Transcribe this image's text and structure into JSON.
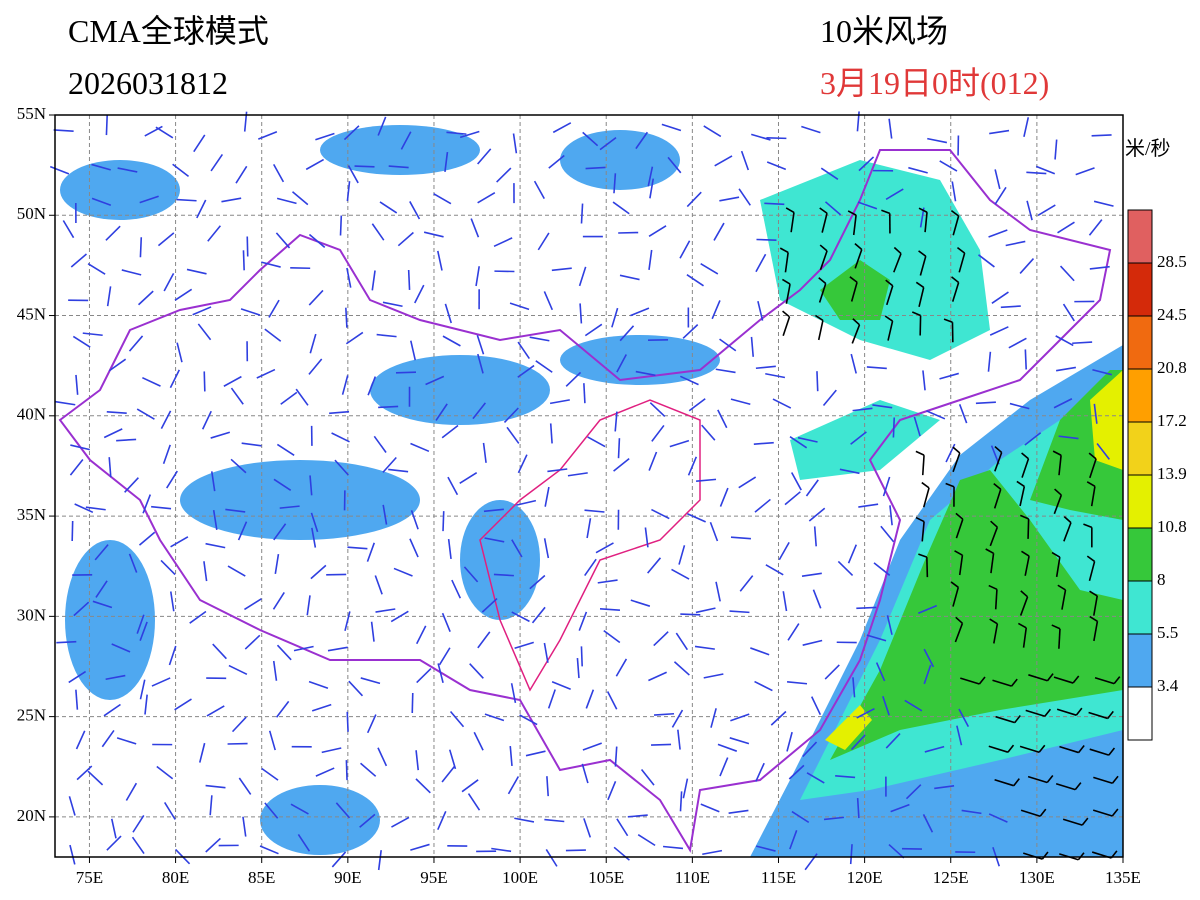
{
  "header": {
    "model": "CMA全球模式",
    "init_time": "2026031812",
    "field": "10米风场",
    "valid_time": "3月19日0时(012)"
  },
  "map": {
    "lon_range": [
      73,
      135
    ],
    "lat_range": [
      18,
      55
    ],
    "lon_ticks": [
      {
        "value": 75,
        "label": "75E"
      },
      {
        "value": 80,
        "label": "80E"
      },
      {
        "value": 85,
        "label": "85E"
      },
      {
        "value": 90,
        "label": "90E"
      },
      {
        "value": 95,
        "label": "95E"
      },
      {
        "value": 100,
        "label": "100E"
      },
      {
        "value": 105,
        "label": "105E"
      },
      {
        "value": 110,
        "label": "110E"
      },
      {
        "value": 115,
        "label": "115E"
      },
      {
        "value": 120,
        "label": "120E"
      },
      {
        "value": 125,
        "label": "125E"
      },
      {
        "value": 130,
        "label": "130E"
      },
      {
        "value": 135,
        "label": "135E"
      }
    ],
    "lat_ticks": [
      {
        "value": 20,
        "label": "20N"
      },
      {
        "value": 25,
        "label": "25N"
      },
      {
        "value": 30,
        "label": "30N"
      },
      {
        "value": 35,
        "label": "35N"
      },
      {
        "value": 40,
        "label": "40N"
      },
      {
        "value": 45,
        "label": "45N"
      },
      {
        "value": 50,
        "label": "50N"
      },
      {
        "value": 55,
        "label": "55N"
      }
    ]
  },
  "colorbar": {
    "unit": "米/秒",
    "levels": [
      3.4,
      5.5,
      8,
      10.8,
      13.9,
      17.2,
      20.8,
      24.5,
      28.5
    ],
    "colors": [
      "#ffffff",
      "#4fa8f0",
      "#3fe6d2",
      "#36c83a",
      "#e4f000",
      "#f2d21a",
      "#ff9f00",
      "#f06a10",
      "#d42a0a",
      "#e06060"
    ]
  }
}
